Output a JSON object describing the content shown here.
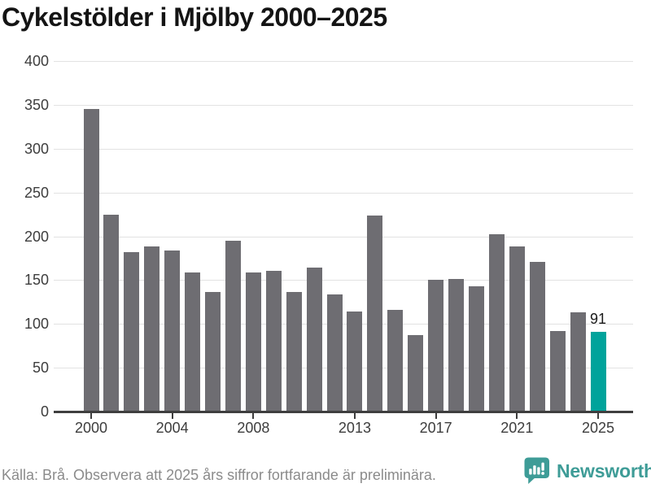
{
  "header": {
    "title": "Cykelstölder i Mjölby 2000–2025"
  },
  "chart_data": {
    "type": "bar",
    "title": "Cykelstölder i Mjölby 2000–2025",
    "categories": [
      2000,
      2001,
      2002,
      2003,
      2004,
      2005,
      2006,
      2007,
      2008,
      2009,
      2010,
      2011,
      2012,
      2013,
      2014,
      2015,
      2016,
      2017,
      2018,
      2019,
      2020,
      2021,
      2022,
      2023,
      2024,
      2025
    ],
    "values": [
      345,
      225,
      182,
      188,
      184,
      159,
      136,
      195,
      159,
      161,
      136,
      164,
      134,
      114,
      224,
      116,
      87,
      150,
      151,
      143,
      202,
      188,
      171,
      92,
      113,
      91
    ],
    "xlabel": "",
    "ylabel": "",
    "ylim": [
      0,
      400
    ],
    "yticks": [
      0,
      50,
      100,
      150,
      200,
      250,
      300,
      350,
      400
    ],
    "xticks": [
      2000,
      2004,
      2008,
      2013,
      2017,
      2021,
      2025
    ],
    "grid": "horizontal",
    "legend": "none",
    "bar_color": "#6E6D72",
    "highlight_year": 2025,
    "highlight_color": "#00A39B",
    "annotation": {
      "year": 2025,
      "label": "91"
    }
  },
  "footer": {
    "source_note": "Källa: Brå. Observera att 2025 års siffror fortfarande är preliminära.",
    "brand": "Newsworthy",
    "brand_color": "#3E9C97"
  }
}
